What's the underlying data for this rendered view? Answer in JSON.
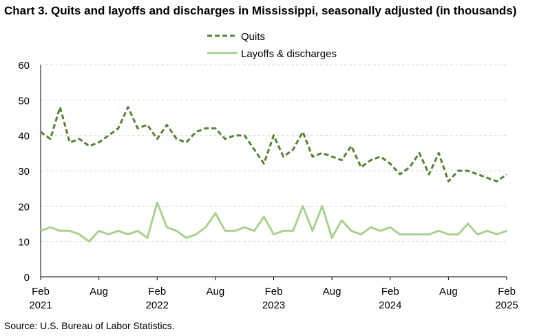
{
  "title": "Chart 3. Quits and layoffs and discharges in Mississippi, seasonally adjusted (in thousands)",
  "source": "Source: U.S. Bureau of Labor Statistics.",
  "colors": {
    "quits": "#548235",
    "layoffs": "#a9d18e",
    "axis": "#000000",
    "grid": "#d9d9d9"
  },
  "chart_data": {
    "type": "line",
    "title": "Chart 3. Quits and layoffs and discharges in Mississippi, seasonally adjusted (in thousands)",
    "xlabel": "",
    "ylabel": "",
    "ylim": [
      0,
      60
    ],
    "yticks": [
      0,
      10,
      20,
      30,
      40,
      50,
      60
    ],
    "grid": true,
    "legend_placement": "top-center",
    "x_start": "2021-02",
    "x_end": "2025-02",
    "x_tick_labels": [
      {
        "month": "Feb",
        "year": "2021",
        "x": "2021-02"
      },
      {
        "month": "Aug",
        "year": "",
        "x": "2021-08"
      },
      {
        "month": "Feb",
        "year": "2022",
        "x": "2022-02"
      },
      {
        "month": "Aug",
        "year": "",
        "x": "2022-08"
      },
      {
        "month": "Feb",
        "year": "2023",
        "x": "2023-02"
      },
      {
        "month": "Aug",
        "year": "",
        "x": "2023-08"
      },
      {
        "month": "Feb",
        "year": "2024",
        "x": "2024-02"
      },
      {
        "month": "Aug",
        "year": "",
        "x": "2024-08"
      },
      {
        "month": "Feb",
        "year": "2025",
        "x": "2025-02"
      }
    ],
    "series": [
      {
        "name": "Quits",
        "style": "dashed",
        "values": [
          41,
          39,
          48,
          38,
          39,
          37,
          38,
          40,
          42,
          48,
          42,
          43,
          39,
          43,
          39,
          38,
          41,
          42,
          42,
          39,
          40,
          40,
          36,
          32,
          40,
          34,
          36,
          41,
          34,
          35,
          34,
          33,
          37,
          31,
          33,
          34,
          32,
          29,
          31,
          35,
          29,
          35,
          27,
          30,
          30,
          29,
          28,
          27,
          29
        ]
      },
      {
        "name": "Layoffs & discharges",
        "style": "solid",
        "values": [
          13,
          14,
          13,
          13,
          12,
          10,
          13,
          12,
          13,
          12,
          13,
          11,
          21,
          14,
          13,
          11,
          12,
          14,
          18,
          13,
          13,
          14,
          13,
          17,
          12,
          13,
          13,
          20,
          13,
          20,
          11,
          16,
          13,
          12,
          14,
          13,
          14,
          12,
          12,
          12,
          12,
          13,
          12,
          12,
          15,
          12,
          13,
          12,
          13
        ]
      }
    ]
  }
}
